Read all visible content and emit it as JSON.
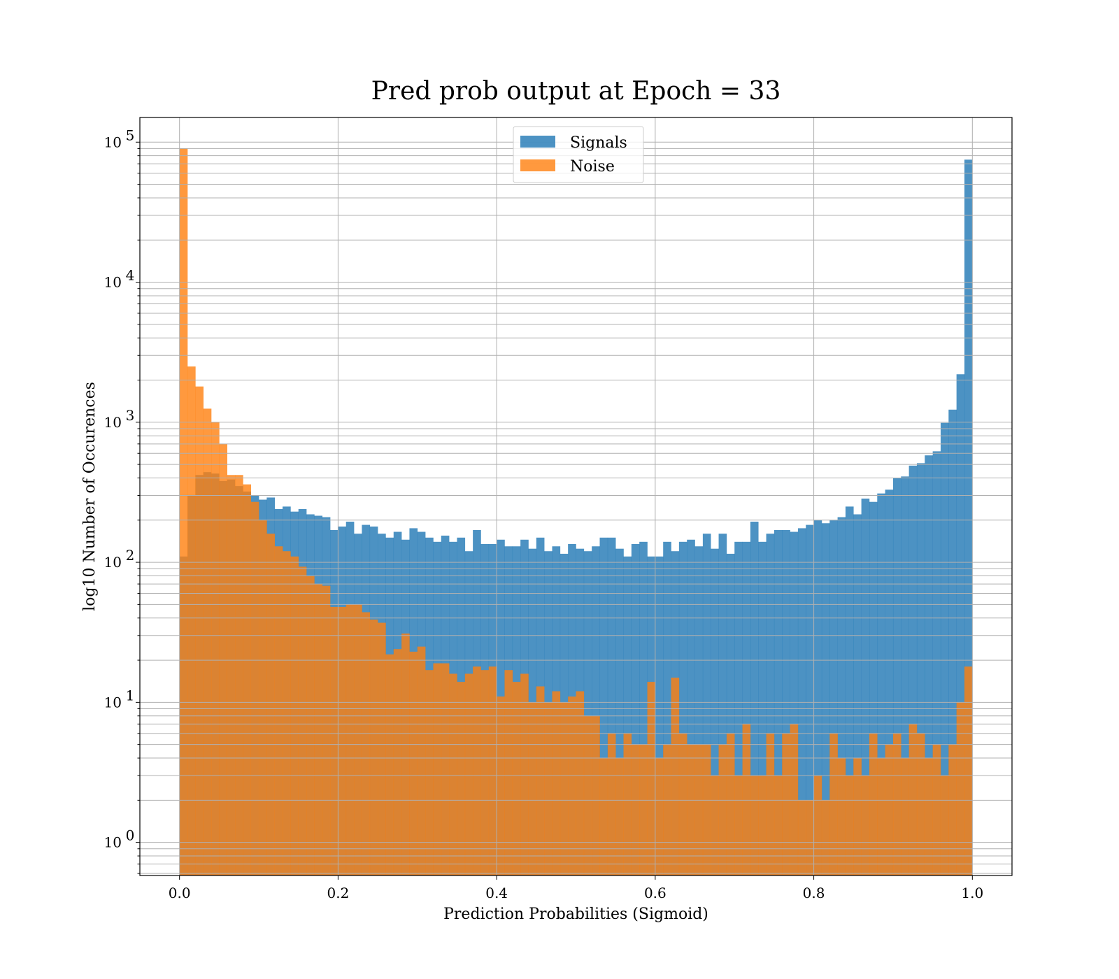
{
  "chart_data": {
    "type": "bar",
    "title": "Pred prob output at Epoch = 33",
    "xlabel": "Prediction Probabilities (Sigmoid)",
    "ylabel": "log10 Number of Occurences",
    "xlim": [
      -0.05,
      1.05
    ],
    "ylim": [
      0.58,
      150000
    ],
    "yscale": "log",
    "grid": true,
    "legend_position": "top-center",
    "bins": 100,
    "bin_range": [
      0.0,
      1.0
    ],
    "x_ticks": [
      "0.0",
      "0.2",
      "0.4",
      "0.6",
      "0.8",
      "1.0"
    ],
    "y_ticks": [
      {
        "base": "10",
        "exp": "0"
      },
      {
        "base": "10",
        "exp": "1"
      },
      {
        "base": "10",
        "exp": "2"
      },
      {
        "base": "10",
        "exp": "3"
      },
      {
        "base": "10",
        "exp": "4"
      },
      {
        "base": "10",
        "exp": "5"
      }
    ],
    "series": [
      {
        "name": "Signals",
        "color": "#1f77b4",
        "values": [
          110,
          300,
          420,
          440,
          430,
          380,
          390,
          350,
          320,
          300,
          280,
          290,
          240,
          250,
          230,
          240,
          220,
          215,
          210,
          170,
          180,
          195,
          160,
          185,
          180,
          160,
          150,
          165,
          145,
          175,
          165,
          150,
          140,
          155,
          140,
          150,
          120,
          170,
          135,
          135,
          145,
          130,
          130,
          145,
          125,
          150,
          120,
          130,
          115,
          135,
          125,
          120,
          130,
          150,
          150,
          125,
          110,
          135,
          140,
          110,
          110,
          140,
          120,
          140,
          145,
          130,
          160,
          125,
          160,
          115,
          140,
          140,
          195,
          140,
          160,
          170,
          170,
          165,
          175,
          185,
          200,
          190,
          200,
          210,
          250,
          220,
          285,
          270,
          310,
          330,
          400,
          410,
          490,
          510,
          580,
          620,
          990,
          1230,
          2200,
          75000
        ]
      },
      {
        "name": "Noise",
        "color": "#ff7f0e",
        "values": [
          90000,
          2500,
          1800,
          1250,
          1000,
          700,
          420,
          420,
          360,
          270,
          200,
          160,
          130,
          120,
          110,
          93,
          80,
          70,
          68,
          48,
          48,
          50,
          50,
          44,
          39,
          37,
          22,
          24,
          31,
          23,
          25,
          17,
          19,
          19,
          16,
          14,
          16,
          18,
          17,
          18,
          11,
          17,
          14,
          16,
          10,
          13,
          10,
          12,
          10,
          11,
          12,
          8,
          8,
          4,
          6,
          4,
          6,
          5,
          5,
          14,
          4,
          5,
          15,
          6,
          5,
          5,
          5,
          3,
          5,
          6,
          3,
          7,
          3,
          3,
          6,
          3,
          6,
          7,
          2,
          2,
          3,
          2,
          6,
          4,
          3,
          4,
          3,
          6,
          4,
          5,
          6,
          4,
          7,
          6,
          4,
          5,
          3,
          5,
          10,
          18
        ]
      }
    ]
  }
}
